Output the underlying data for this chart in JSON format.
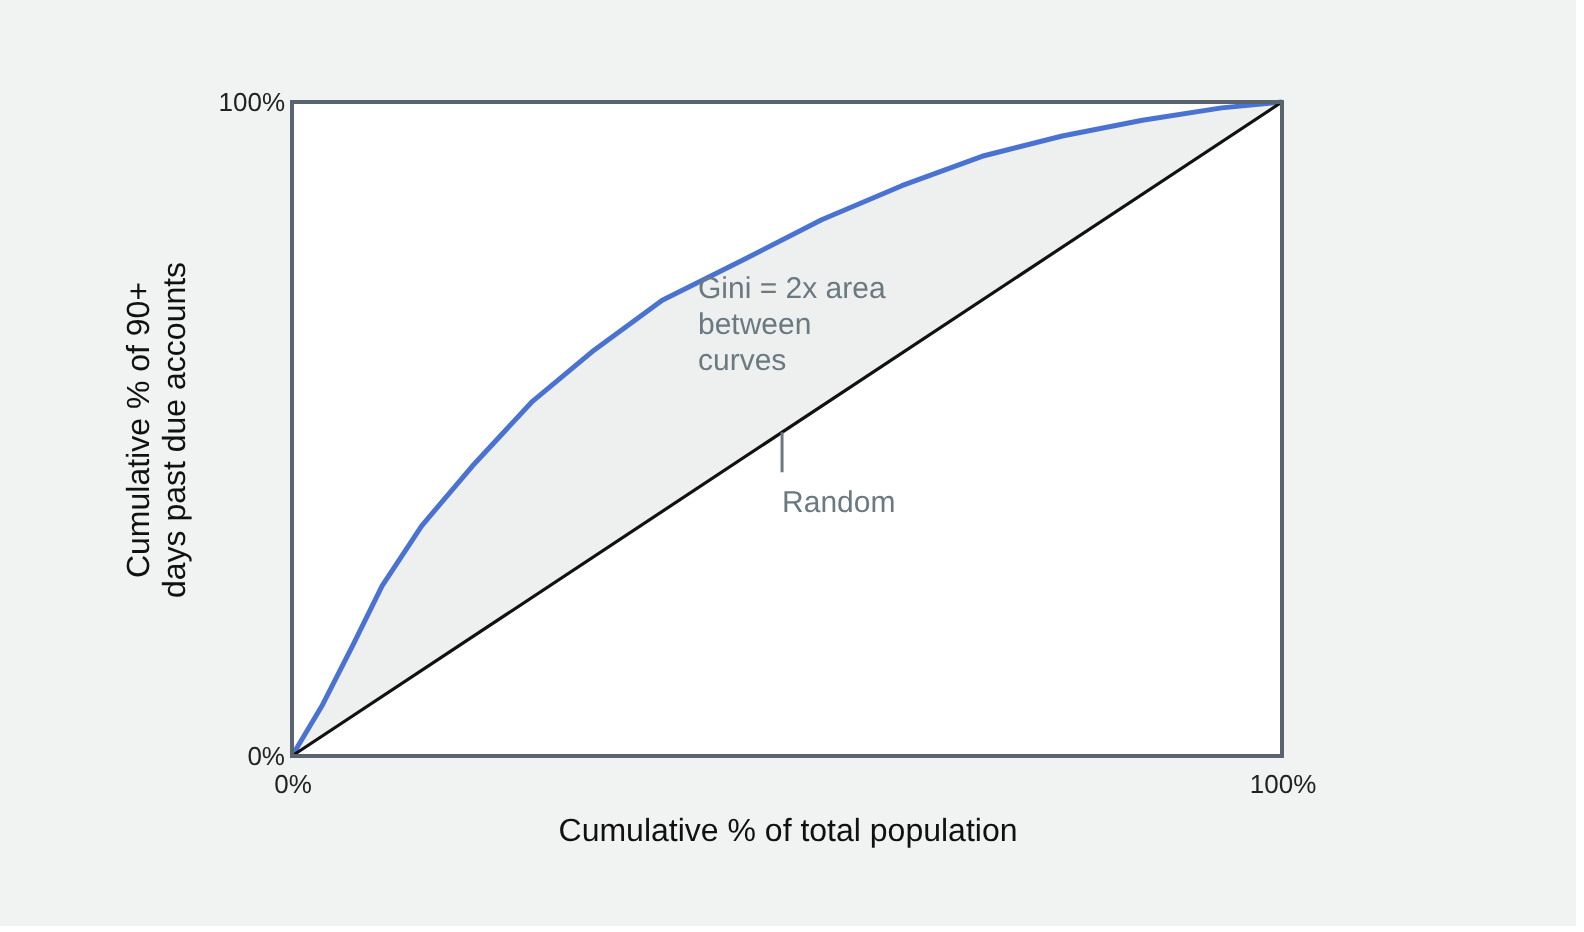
{
  "chart_data": {
    "type": "line",
    "xlabel": "Cumulative % of total population",
    "ylabel": "Cumulative % of 90+\ndays past due accounts",
    "x": [
      0,
      3.0,
      6.1,
      9.1,
      13.1,
      18.2,
      24.2,
      30.3,
      37.4,
      45.5,
      53.5,
      61.6,
      69.7,
      77.8,
      85.9,
      93.9,
      100
    ],
    "series": [
      {
        "color": "#4a72d0",
        "values": [
          0,
          7.6,
          16.8,
          26.0,
          35.2,
          44.3,
          54.1,
          61.8,
          69.7,
          75.8,
          82.0,
          87.2,
          91.7,
          94.8,
          97.2,
          99.1,
          100
        ]
      },
      {
        "color": "#111111",
        "x": [
          0,
          100
        ],
        "values": [
          0,
          100
        ]
      }
    ],
    "xlim": [
      0,
      100
    ],
    "ylim": [
      0,
      100
    ],
    "xticks": [
      {
        "value": 0,
        "label": "0%"
      },
      {
        "value": 100,
        "label": "100%"
      }
    ],
    "yticks": [
      {
        "value": 0,
        "label": "0%"
      },
      {
        "value": 100,
        "label": "100%"
      }
    ],
    "marker": "none",
    "line_style": "solid",
    "annotations": [
      "Gini = 2x area\nbetween\ncurves",
      {
        "text": "Random",
        "x": 49.5,
        "y": 49.5
      }
    ]
  }
}
